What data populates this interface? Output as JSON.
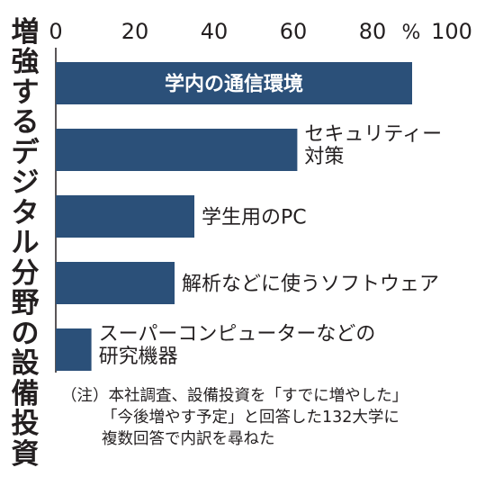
{
  "title": "増強するデジタル分野の設備投資",
  "note": {
    "line1": "（注）本社調査、設備投資を「すでに増やした」",
    "line2": "「今後増やす予定」と回答した132大学に",
    "line3": "複数回答で内訳を尋ねた"
  },
  "colors": {
    "bar": "#2b5079",
    "text": "#231f20",
    "inner_label": "#ffffff"
  },
  "chart_data": {
    "type": "bar",
    "orientation": "horizontal",
    "title": "増強するデジタル分野の設備投資",
    "unit": "%",
    "xlim": [
      0,
      100
    ],
    "ticks": [
      0,
      20,
      40,
      60,
      80,
      100
    ],
    "categories": [
      [
        "学内の通信環境"
      ],
      [
        "セキュリティー",
        "対策"
      ],
      [
        "学生用のPC"
      ],
      [
        "解析などに使うソフトウェア"
      ],
      [
        "スーパーコンピューターなどの",
        "研究機器"
      ]
    ],
    "values": [
      90,
      61,
      35,
      30,
      9
    ]
  }
}
